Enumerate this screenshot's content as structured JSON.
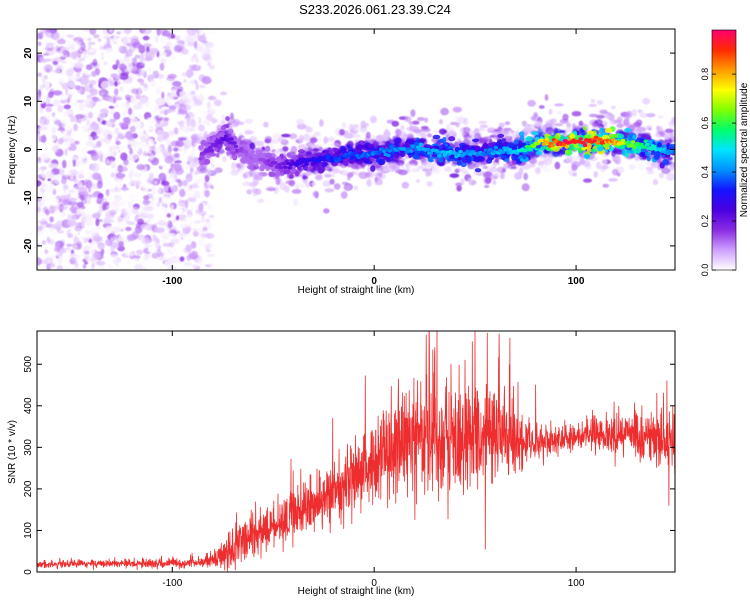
{
  "figure_title": "S233.2026.061.23.39.C24",
  "chart_data": [
    {
      "type": "heatmap",
      "name": "spectrogram",
      "title": "S233.2026.061.23.39.C24",
      "xlabel": "Height of straight line (km)",
      "ylabel": "Frequency (Hz)",
      "xlim": [
        -167,
        149
      ],
      "ylim": [
        -25,
        25
      ],
      "xticks": [
        -100,
        0,
        100
      ],
      "yticks": [
        -20,
        -10,
        0,
        10,
        20
      ],
      "colorbar": {
        "label": "Normalized spectral amplitude",
        "range": [
          0.0,
          0.98
        ],
        "ticks": [
          0.0,
          0.2,
          0.4,
          0.6,
          0.8
        ],
        "colors": [
          "#ffffff",
          "#cf9fff",
          "#8a2be2",
          "#4b00e0",
          "#1414ff",
          "#0090ff",
          "#00e5ff",
          "#00ff6a",
          "#7fff00",
          "#ffff00",
          "#ff9a00",
          "#ff2a00",
          "#ff0070"
        ]
      },
      "signal_track": {
        "x": [
          -86,
          -80,
          -75,
          -70,
          -65,
          -60,
          -55,
          -50,
          -45,
          -40,
          -35,
          -30,
          -25,
          -20,
          -15,
          -10,
          -5,
          0,
          5,
          10,
          15,
          20,
          25,
          30,
          35,
          40,
          45,
          50,
          55,
          60,
          65,
          70,
          75,
          80,
          85,
          90,
          95,
          100,
          105,
          110,
          115,
          120,
          125,
          130,
          135,
          140,
          145,
          149
        ],
        "frequency": [
          -1.5,
          0.5,
          2.5,
          1.5,
          -0.5,
          -1.5,
          -2.0,
          -3.0,
          -3.5,
          -3.0,
          -2.5,
          -2.2,
          -2.0,
          -1.8,
          -1.5,
          -1.2,
          -1.0,
          -0.8,
          -0.5,
          -0.2,
          0.0,
          0.3,
          0.2,
          -0.2,
          -0.5,
          -0.8,
          -1.0,
          -0.8,
          -0.5,
          -0.2,
          0.0,
          -0.5,
          0.0,
          1.0,
          1.5,
          1.5,
          1.5,
          1.6,
          1.6,
          1.7,
          1.7,
          1.5,
          1.2,
          1.0,
          0.8,
          0.0,
          -0.5,
          -0.5
        ],
        "amplitude": [
          0.15,
          0.2,
          0.22,
          0.2,
          0.15,
          0.12,
          0.14,
          0.18,
          0.2,
          0.25,
          0.28,
          0.3,
          0.32,
          0.34,
          0.35,
          0.36,
          0.38,
          0.38,
          0.4,
          0.4,
          0.42,
          0.42,
          0.44,
          0.44,
          0.45,
          0.45,
          0.42,
          0.42,
          0.4,
          0.42,
          0.45,
          0.48,
          0.55,
          0.65,
          0.8,
          0.9,
          0.95,
          0.92,
          0.9,
          0.9,
          0.85,
          0.8,
          0.65,
          0.6,
          0.55,
          0.5,
          0.45,
          0.4
        ]
      },
      "noise_region_x": [
        -167,
        -80
      ]
    },
    {
      "type": "line",
      "name": "snr",
      "title": "",
      "xlabel": "Height of straight line (km)",
      "ylabel": "SNR (10 * v/v)",
      "xlim": [
        -167,
        149
      ],
      "ylim": [
        0,
        580
      ],
      "xticks": [
        -100,
        0,
        100
      ],
      "yticks": [
        0,
        100,
        200,
        300,
        400,
        500
      ],
      "color": "#ee2e2e",
      "envelope": {
        "x": [
          -167,
          -140,
          -120,
          -100,
          -85,
          -80,
          -75,
          -70,
          -65,
          -60,
          -55,
          -50,
          -45,
          -40,
          -35,
          -30,
          -25,
          -20,
          -15,
          -10,
          -5,
          0,
          5,
          10,
          15,
          20,
          25,
          30,
          35,
          40,
          45,
          50,
          55,
          60,
          65,
          70,
          75,
          80,
          90,
          100,
          110,
          120,
          130,
          140,
          149
        ],
        "mean": [
          18,
          20,
          20,
          20,
          22,
          30,
          45,
          60,
          75,
          85,
          100,
          110,
          125,
          140,
          150,
          160,
          175,
          195,
          210,
          225,
          250,
          270,
          285,
          300,
          310,
          320,
          320,
          320,
          315,
          310,
          315,
          320,
          325,
          320,
          320,
          310,
          310,
          310,
          320,
          325,
          330,
          325,
          320,
          320,
          325
        ],
        "spread": [
          8,
          8,
          8,
          10,
          12,
          20,
          35,
          45,
          50,
          50,
          45,
          50,
          55,
          60,
          60,
          60,
          65,
          70,
          75,
          80,
          85,
          90,
          100,
          110,
          120,
          120,
          130,
          130,
          130,
          130,
          130,
          130,
          130,
          120,
          110,
          90,
          45,
          35,
          30,
          30,
          35,
          40,
          50,
          60,
          70
        ]
      },
      "spikes": [
        {
          "x": -20.5,
          "y": 370
        },
        {
          "x": -79,
          "y": 55
        },
        {
          "x": 26,
          "y": 475
        },
        {
          "x": 30,
          "y": 540
        },
        {
          "x": 50,
          "y": 580
        },
        {
          "x": 56,
          "y": 575
        },
        {
          "x": 45,
          "y": 510
        },
        {
          "x": 62,
          "y": 520
        },
        {
          "x": 38,
          "y": 500
        },
        {
          "x": 80,
          "y": 450
        },
        {
          "x": 145,
          "y": 460
        },
        {
          "x": 140,
          "y": 430
        },
        {
          "x": 146,
          "y": 160
        },
        {
          "x": 55,
          "y": 55
        }
      ]
    }
  ]
}
